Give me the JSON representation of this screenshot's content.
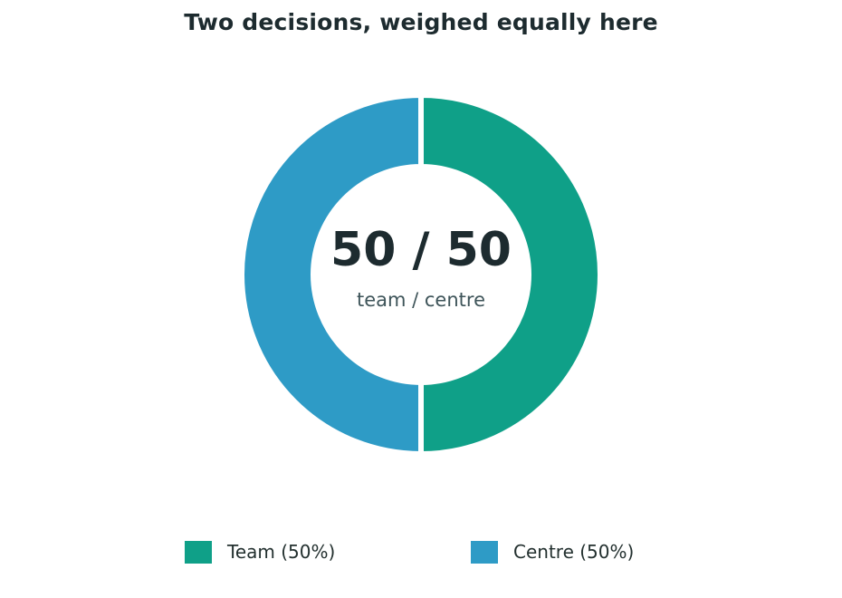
{
  "chart_data": {
    "type": "pie",
    "title": "Two decisions, weighed equally here",
    "categories": [
      "Team",
      "Centre"
    ],
    "values": [
      50,
      50
    ],
    "colors": [
      "#0fa088",
      "#2e9bc6"
    ],
    "legend": {
      "placement": "bottom",
      "entries": [
        "Team (50%)",
        "Centre (50%)"
      ]
    },
    "center_label": {
      "value": "50 / 50",
      "caption": "team / centre"
    },
    "donut": true
  }
}
